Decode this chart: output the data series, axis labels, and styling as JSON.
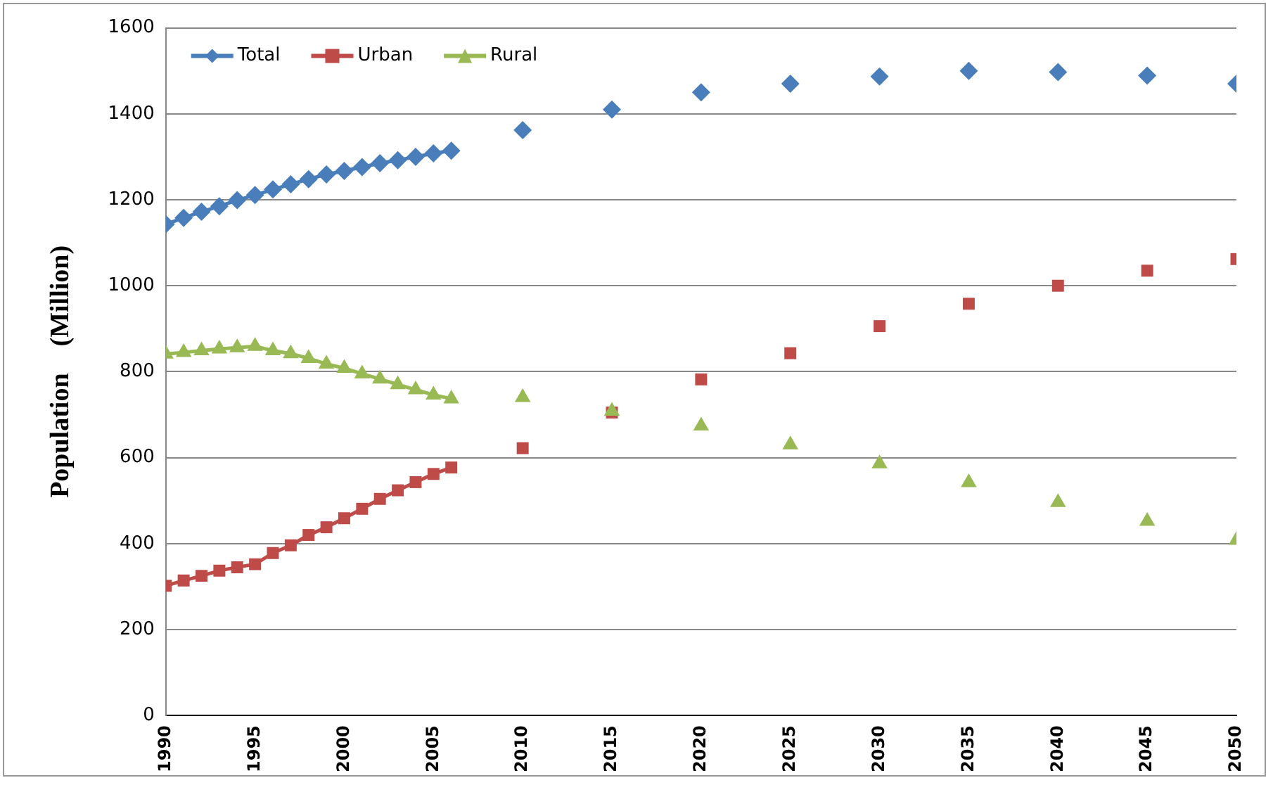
{
  "chart_data": {
    "type": "line",
    "ylabel": "Population    (Million)",
    "xlim": [
      1990,
      2050
    ],
    "xticks": [
      1990,
      1995,
      2000,
      2005,
      2010,
      2015,
      2020,
      2025,
      2030,
      2035,
      2040,
      2045,
      2050
    ],
    "ylim": [
      0,
      1600
    ],
    "yticks": [
      0,
      200,
      400,
      600,
      800,
      1000,
      1200,
      1400,
      1600
    ],
    "grid": "y",
    "legend": "top left",
    "line_style": "solid",
    "series": [
      {
        "name": "Total",
        "color": "#4a7ebb",
        "marker": "diamond",
        "x": [
          1990,
          1991,
          1992,
          1993,
          1994,
          1995,
          1996,
          1997,
          1998,
          1999,
          2000,
          2001,
          2002,
          2003,
          2004,
          2005,
          2006
        ],
        "values": [
          1143,
          1158,
          1172,
          1185,
          1199,
          1211,
          1224,
          1236,
          1248,
          1259,
          1267,
          1276,
          1285,
          1292,
          1300,
          1308,
          1314
        ]
      },
      {
        "name": "Urban",
        "color": "#be4b48",
        "marker": "square",
        "x": [
          1990,
          1991,
          1992,
          1993,
          1994,
          1995,
          1996,
          1997,
          1998,
          1999,
          2000,
          2001,
          2002,
          2003,
          2004,
          2005,
          2006
        ],
        "values": [
          302,
          314,
          325,
          337,
          345,
          352,
          378,
          396,
          420,
          438,
          459,
          481,
          504,
          524,
          543,
          562,
          577
        ]
      },
      {
        "name": "Rural",
        "color": "#98b954",
        "marker": "triangle",
        "x": [
          1990,
          1991,
          1992,
          1993,
          1994,
          1995,
          1996,
          1997,
          1998,
          1999,
          2000,
          2001,
          2002,
          2003,
          2004,
          2005,
          2006
        ],
        "values": [
          841,
          845,
          849,
          853,
          856,
          859,
          849,
          842,
          831,
          818,
          808,
          795,
          783,
          770,
          758,
          746,
          737
        ]
      },
      {
        "type": "scatter",
        "color": "#4a7ebb",
        "marker": "diamond",
        "x": [
          2010,
          2015,
          2020,
          2025,
          2030,
          2035,
          2040,
          2045,
          2050
        ],
        "values": [
          1362,
          1410,
          1450,
          1470,
          1487,
          1500,
          1497,
          1489,
          1470
        ]
      },
      {
        "type": "scatter",
        "color": "#be4b48",
        "marker": "square",
        "x": [
          2010,
          2015,
          2020,
          2025,
          2030,
          2035,
          2040,
          2045,
          2050
        ],
        "values": [
          622,
          705,
          782,
          843,
          906,
          958,
          1000,
          1035,
          1062
        ]
      },
      {
        "type": "scatter",
        "color": "#98b954",
        "marker": "triangle",
        "x": [
          2010,
          2015,
          2020,
          2025,
          2030,
          2035,
          2040,
          2045,
          2050
        ],
        "values": [
          740,
          708,
          674,
          630,
          586,
          542,
          496,
          452,
          408
        ]
      }
    ]
  }
}
